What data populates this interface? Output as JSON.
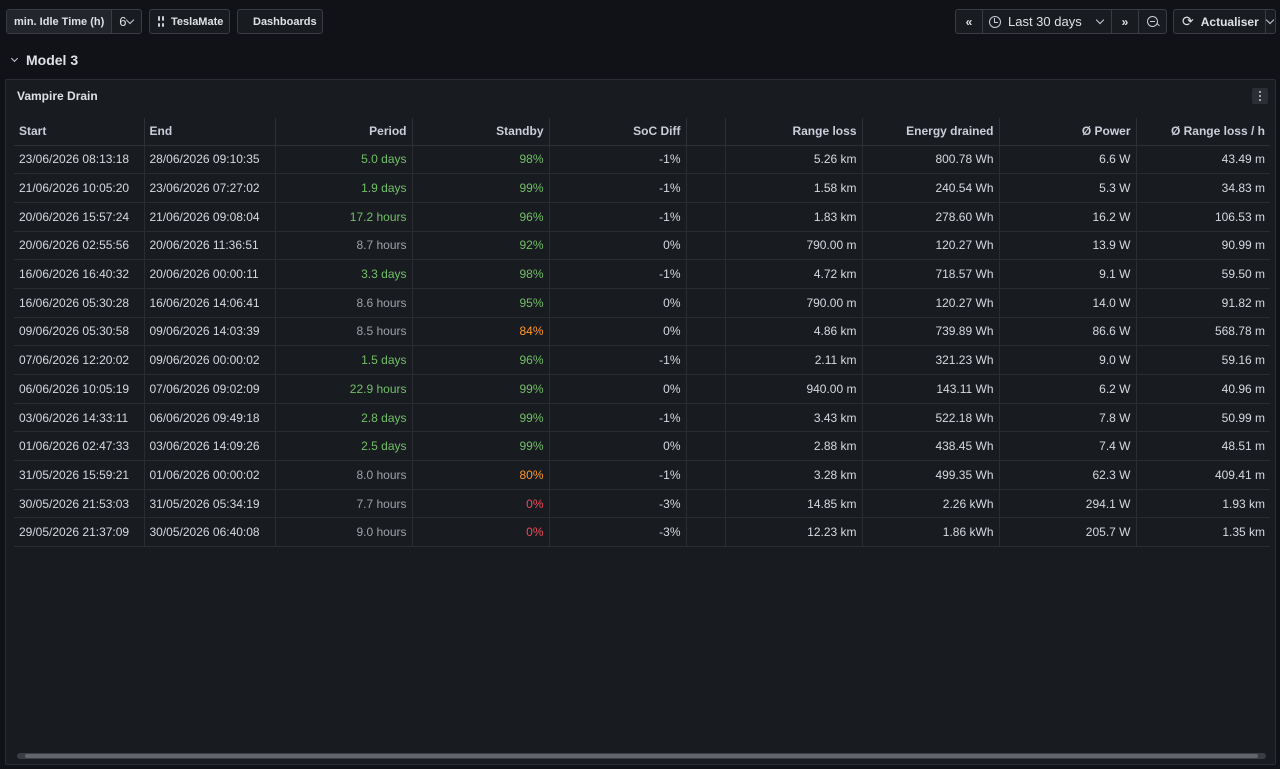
{
  "toolbar": {
    "variable_label": "min. Idle Time (h)",
    "variable_value": "6",
    "link1": "TeslaMate",
    "link2": "Dashboards",
    "time_range": "Last 30 days",
    "refresh_label": "Actualiser"
  },
  "row": {
    "title": "Model 3"
  },
  "panel": {
    "title": "Vampire Drain",
    "columns": [
      "Start",
      "End",
      "Period",
      "Standby",
      "SoC Diff",
      "",
      "Range loss",
      "Energy drained",
      "Ø Power",
      "Ø Range loss / h"
    ],
    "rows": [
      {
        "start": "23/06/2026 08:13:18",
        "end": "28/06/2026 09:10:35",
        "period": "5.0 days",
        "period_color": "green",
        "standby": "98%",
        "standby_color": "green",
        "soc": "-1%",
        "range_loss": "5.26 km",
        "energy": "800.78 Wh",
        "power": "6.6 W",
        "range_h": "43.49 m"
      },
      {
        "start": "21/06/2026 10:05:20",
        "end": "23/06/2026 07:27:02",
        "period": "1.9 days",
        "period_color": "green",
        "standby": "99%",
        "standby_color": "green",
        "soc": "-1%",
        "range_loss": "1.58 km",
        "energy": "240.54 Wh",
        "power": "5.3 W",
        "range_h": "34.83 m"
      },
      {
        "start": "20/06/2026 15:57:24",
        "end": "21/06/2026 09:08:04",
        "period": "17.2 hours",
        "period_color": "green",
        "standby": "96%",
        "standby_color": "green",
        "soc": "-1%",
        "range_loss": "1.83 km",
        "energy": "278.60 Wh",
        "power": "16.2 W",
        "range_h": "106.53 m"
      },
      {
        "start": "20/06/2026 02:55:56",
        "end": "20/06/2026 11:36:51",
        "period": "8.7 hours",
        "period_color": "gray",
        "standby": "92%",
        "standby_color": "green",
        "soc": "0%",
        "range_loss": "790.00 m",
        "energy": "120.27 Wh",
        "power": "13.9 W",
        "range_h": "90.99 m"
      },
      {
        "start": "16/06/2026 16:40:32",
        "end": "20/06/2026 00:00:11",
        "period": "3.3 days",
        "period_color": "green",
        "standby": "98%",
        "standby_color": "green",
        "soc": "-1%",
        "range_loss": "4.72 km",
        "energy": "718.57 Wh",
        "power": "9.1 W",
        "range_h": "59.50 m"
      },
      {
        "start": "16/06/2026 05:30:28",
        "end": "16/06/2026 14:06:41",
        "period": "8.6 hours",
        "period_color": "gray",
        "standby": "95%",
        "standby_color": "green",
        "soc": "0%",
        "range_loss": "790.00 m",
        "energy": "120.27 Wh",
        "power": "14.0 W",
        "range_h": "91.82 m"
      },
      {
        "start": "09/06/2026 05:30:58",
        "end": "09/06/2026 14:03:39",
        "period": "8.5 hours",
        "period_color": "gray",
        "standby": "84%",
        "standby_color": "orange",
        "soc": "0%",
        "range_loss": "4.86 km",
        "energy": "739.89 Wh",
        "power": "86.6 W",
        "range_h": "568.78 m"
      },
      {
        "start": "07/06/2026 12:20:02",
        "end": "09/06/2026 00:00:02",
        "period": "1.5 days",
        "period_color": "green",
        "standby": "96%",
        "standby_color": "green",
        "soc": "-1%",
        "range_loss": "2.11 km",
        "energy": "321.23 Wh",
        "power": "9.0 W",
        "range_h": "59.16 m"
      },
      {
        "start": "06/06/2026 10:05:19",
        "end": "07/06/2026 09:02:09",
        "period": "22.9 hours",
        "period_color": "green",
        "standby": "99%",
        "standby_color": "green",
        "soc": "0%",
        "range_loss": "940.00 m",
        "energy": "143.11 Wh",
        "power": "6.2 W",
        "range_h": "40.96 m"
      },
      {
        "start": "03/06/2026 14:33:11",
        "end": "06/06/2026 09:49:18",
        "period": "2.8 days",
        "period_color": "green",
        "standby": "99%",
        "standby_color": "green",
        "soc": "-1%",
        "range_loss": "3.43 km",
        "energy": "522.18 Wh",
        "power": "7.8 W",
        "range_h": "50.99 m"
      },
      {
        "start": "01/06/2026 02:47:33",
        "end": "03/06/2026 14:09:26",
        "period": "2.5 days",
        "period_color": "green",
        "standby": "99%",
        "standby_color": "green",
        "soc": "0%",
        "range_loss": "2.88 km",
        "energy": "438.45 Wh",
        "power": "7.4 W",
        "range_h": "48.51 m"
      },
      {
        "start": "31/05/2026 15:59:21",
        "end": "01/06/2026 00:00:02",
        "period": "8.0 hours",
        "period_color": "gray",
        "standby": "80%",
        "standby_color": "orange",
        "soc": "-1%",
        "range_loss": "3.28 km",
        "energy": "499.35 Wh",
        "power": "62.3 W",
        "range_h": "409.41 m"
      },
      {
        "start": "30/05/2026 21:53:03",
        "end": "31/05/2026 05:34:19",
        "period": "7.7 hours",
        "period_color": "gray",
        "standby": "0%",
        "standby_color": "red",
        "soc": "-3%",
        "range_loss": "14.85 km",
        "energy": "2.26 kWh",
        "power": "294.1 W",
        "range_h": "1.93 km"
      },
      {
        "start": "29/05/2026 21:37:09",
        "end": "30/05/2026 06:40:08",
        "period": "9.0 hours",
        "period_color": "gray",
        "standby": "0%",
        "standby_color": "red",
        "soc": "-3%",
        "range_loss": "12.23 km",
        "energy": "1.86 kWh",
        "power": "205.7 W",
        "range_h": "1.35 km"
      }
    ]
  }
}
